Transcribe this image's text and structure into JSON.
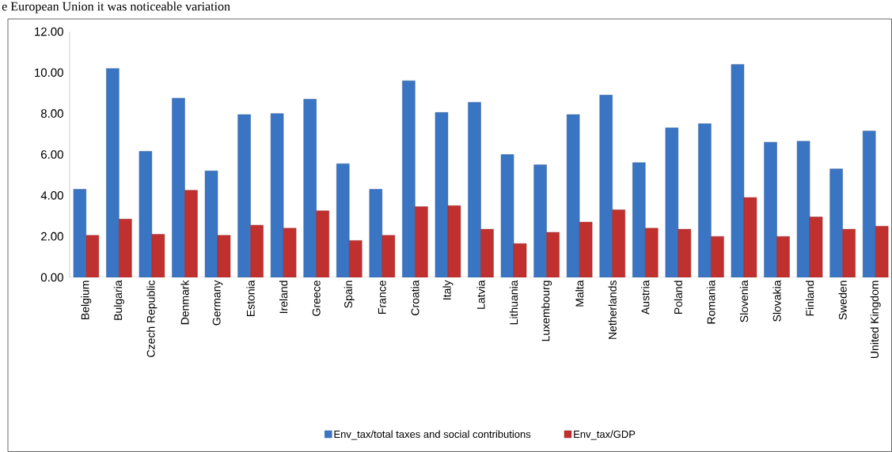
{
  "chart_data": {
    "type": "bar",
    "annotations": [
      "e European Union it was noticeable variation"
    ],
    "categories": [
      "Belgium",
      "Bulgaria",
      "Czech Republic",
      "Denmark",
      "Germany",
      "Estonia",
      "Ireland",
      "Greece",
      "Spain",
      "France",
      "Croatia",
      "Italy",
      "Latvia",
      "Lithuania",
      "Luxembourg",
      "Malta",
      "Netherlands",
      "Austria",
      "Poland",
      "Romania",
      "Slovenia",
      "Slovakia",
      "Finland",
      "Sweden",
      "United Kingdom"
    ],
    "series": [
      {
        "name": "Env_tax/total taxes and social contributions",
        "color": "#3a75c4",
        "values": [
          4.3,
          10.2,
          6.15,
          8.75,
          5.2,
          7.95,
          8.0,
          8.7,
          5.55,
          4.3,
          9.6,
          8.05,
          8.55,
          6.0,
          5.5,
          7.95,
          8.9,
          5.6,
          7.3,
          7.5,
          10.4,
          6.6,
          6.65,
          5.3,
          7.15
        ]
      },
      {
        "name": "Env_tax/GDP",
        "color": "#c0302e",
        "values": [
          2.05,
          2.85,
          2.1,
          4.25,
          2.05,
          2.55,
          2.4,
          3.25,
          1.8,
          2.05,
          3.45,
          3.5,
          2.35,
          1.65,
          2.2,
          2.7,
          3.3,
          2.4,
          2.35,
          2.0,
          3.9,
          2.0,
          2.95,
          2.35,
          2.5
        ]
      }
    ],
    "ylim": [
      0,
      12
    ],
    "yticks": [
      {
        "value": 0,
        "label": "0.00"
      },
      {
        "value": 2,
        "label": "2.00"
      },
      {
        "value": 4,
        "label": "4.00"
      },
      {
        "value": 6,
        "label": "6.00"
      },
      {
        "value": 8,
        "label": "8.00"
      },
      {
        "value": 10,
        "label": "10.00"
      },
      {
        "value": 12,
        "label": "12.00"
      }
    ],
    "grid": false,
    "legend": "bottom"
  }
}
